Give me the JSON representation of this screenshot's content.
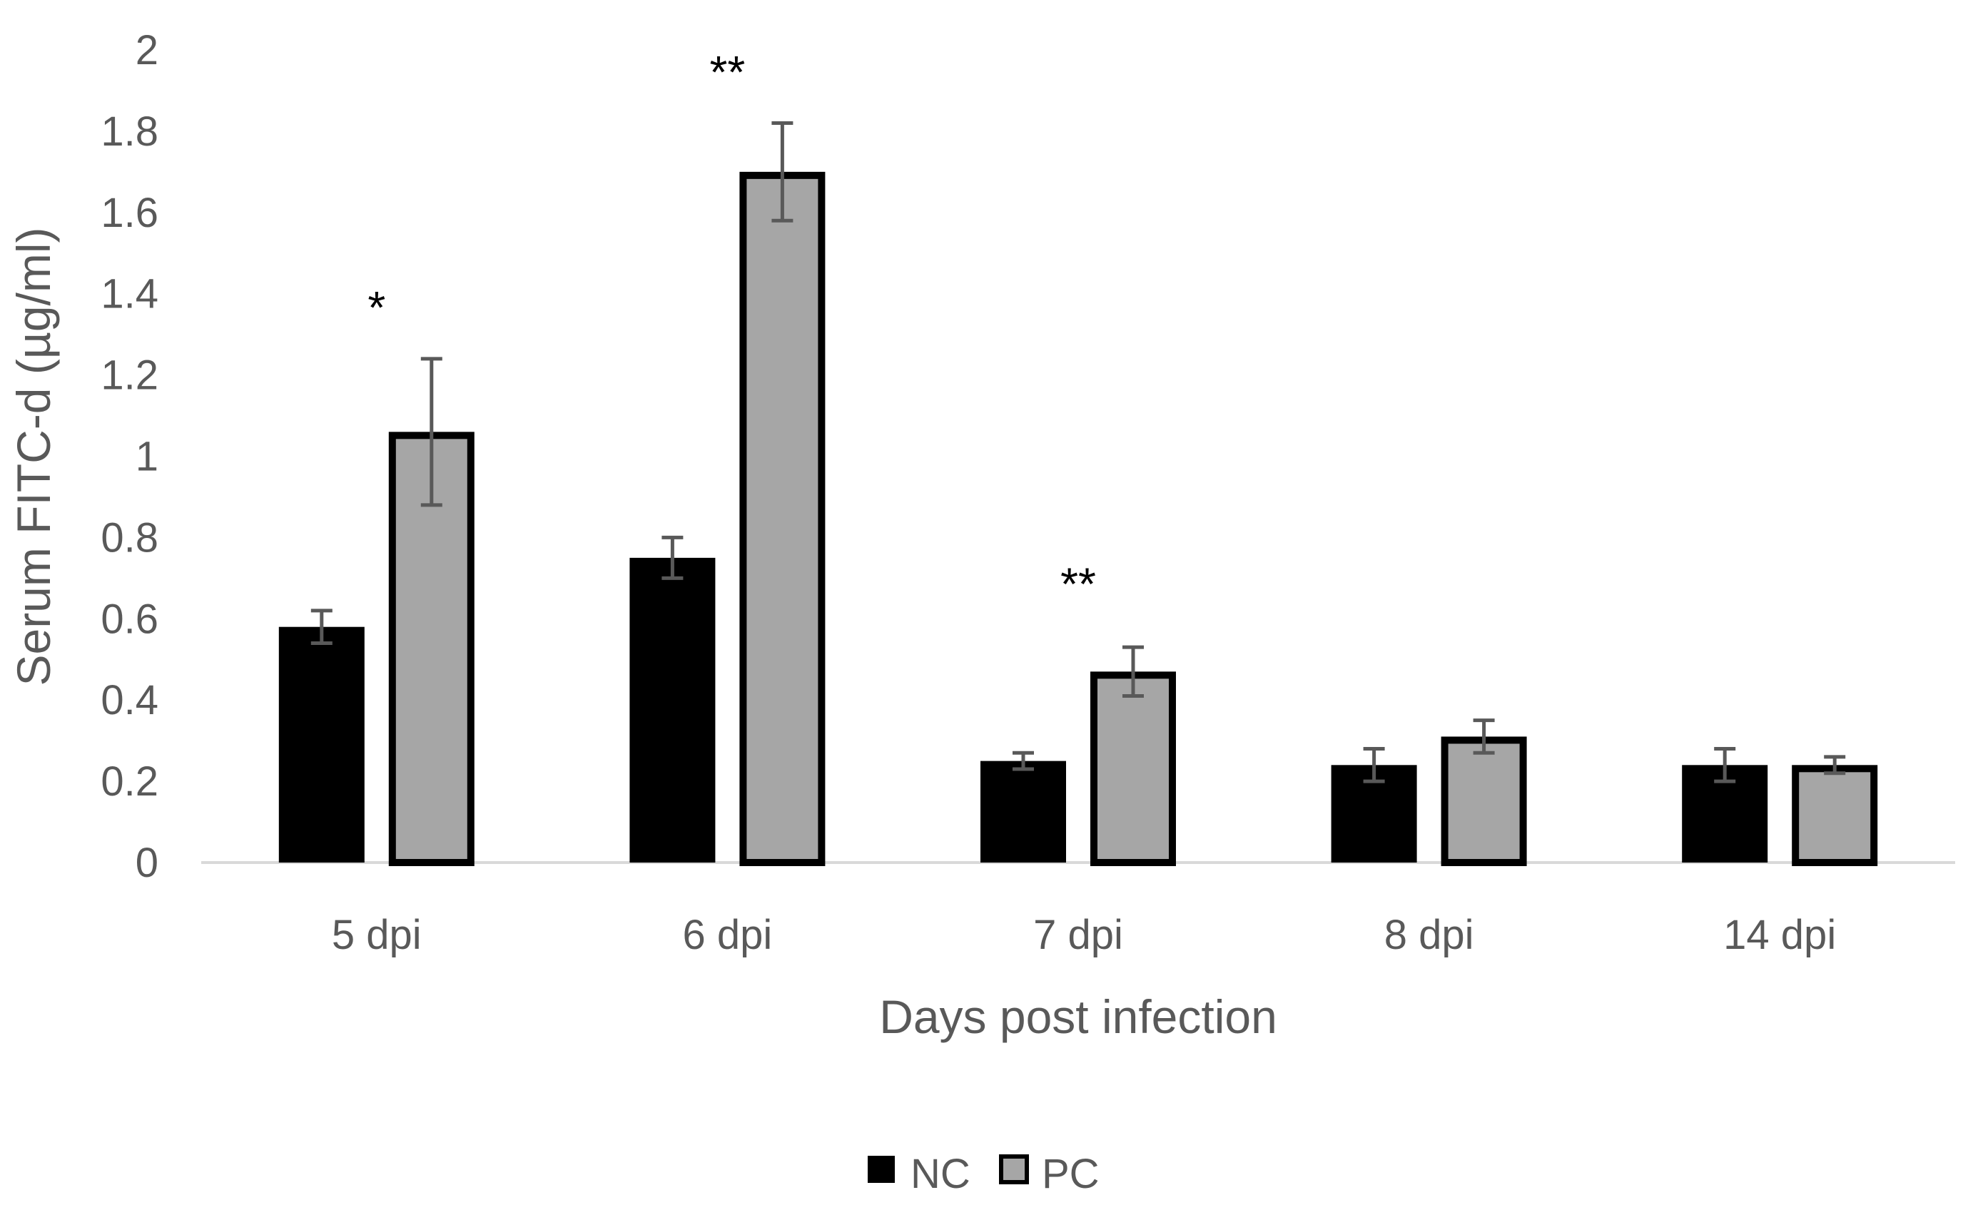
{
  "chart_data": {
    "type": "bar",
    "title": "",
    "xlabel": "Days post infection",
    "ylabel": "Serum FITC-d (µg/ml)",
    "ylim": [
      0,
      2
    ],
    "yticks": [
      "0",
      "0.2",
      "0.4",
      "0.6",
      "0.8",
      "1",
      "1.2",
      "1.4",
      "1.6",
      "1.8",
      "2"
    ],
    "grid": false,
    "legend_position": "bottom-center",
    "categories": [
      "5 dpi",
      "6 dpi",
      "7 dpi",
      "8 dpi",
      "14 dpi"
    ],
    "series": [
      {
        "name": "NC",
        "color": "#000000",
        "values": [
          0.58,
          0.75,
          0.25,
          0.24,
          0.24
        ],
        "errors": [
          0.04,
          0.05,
          0.02,
          0.04,
          0.04
        ]
      },
      {
        "name": "PC",
        "color": "#a6a6a6",
        "values": [
          1.06,
          1.7,
          0.47,
          0.31,
          0.24
        ],
        "errors": [
          0.18,
          0.12,
          0.06,
          0.04,
          0.02
        ]
      }
    ],
    "annotations": [
      {
        "category": "5 dpi",
        "text": "*",
        "y": 1.38
      },
      {
        "category": "6 dpi",
        "text": "**",
        "y": 1.96
      },
      {
        "category": "7 dpi",
        "text": "**",
        "y": 0.7
      }
    ]
  }
}
